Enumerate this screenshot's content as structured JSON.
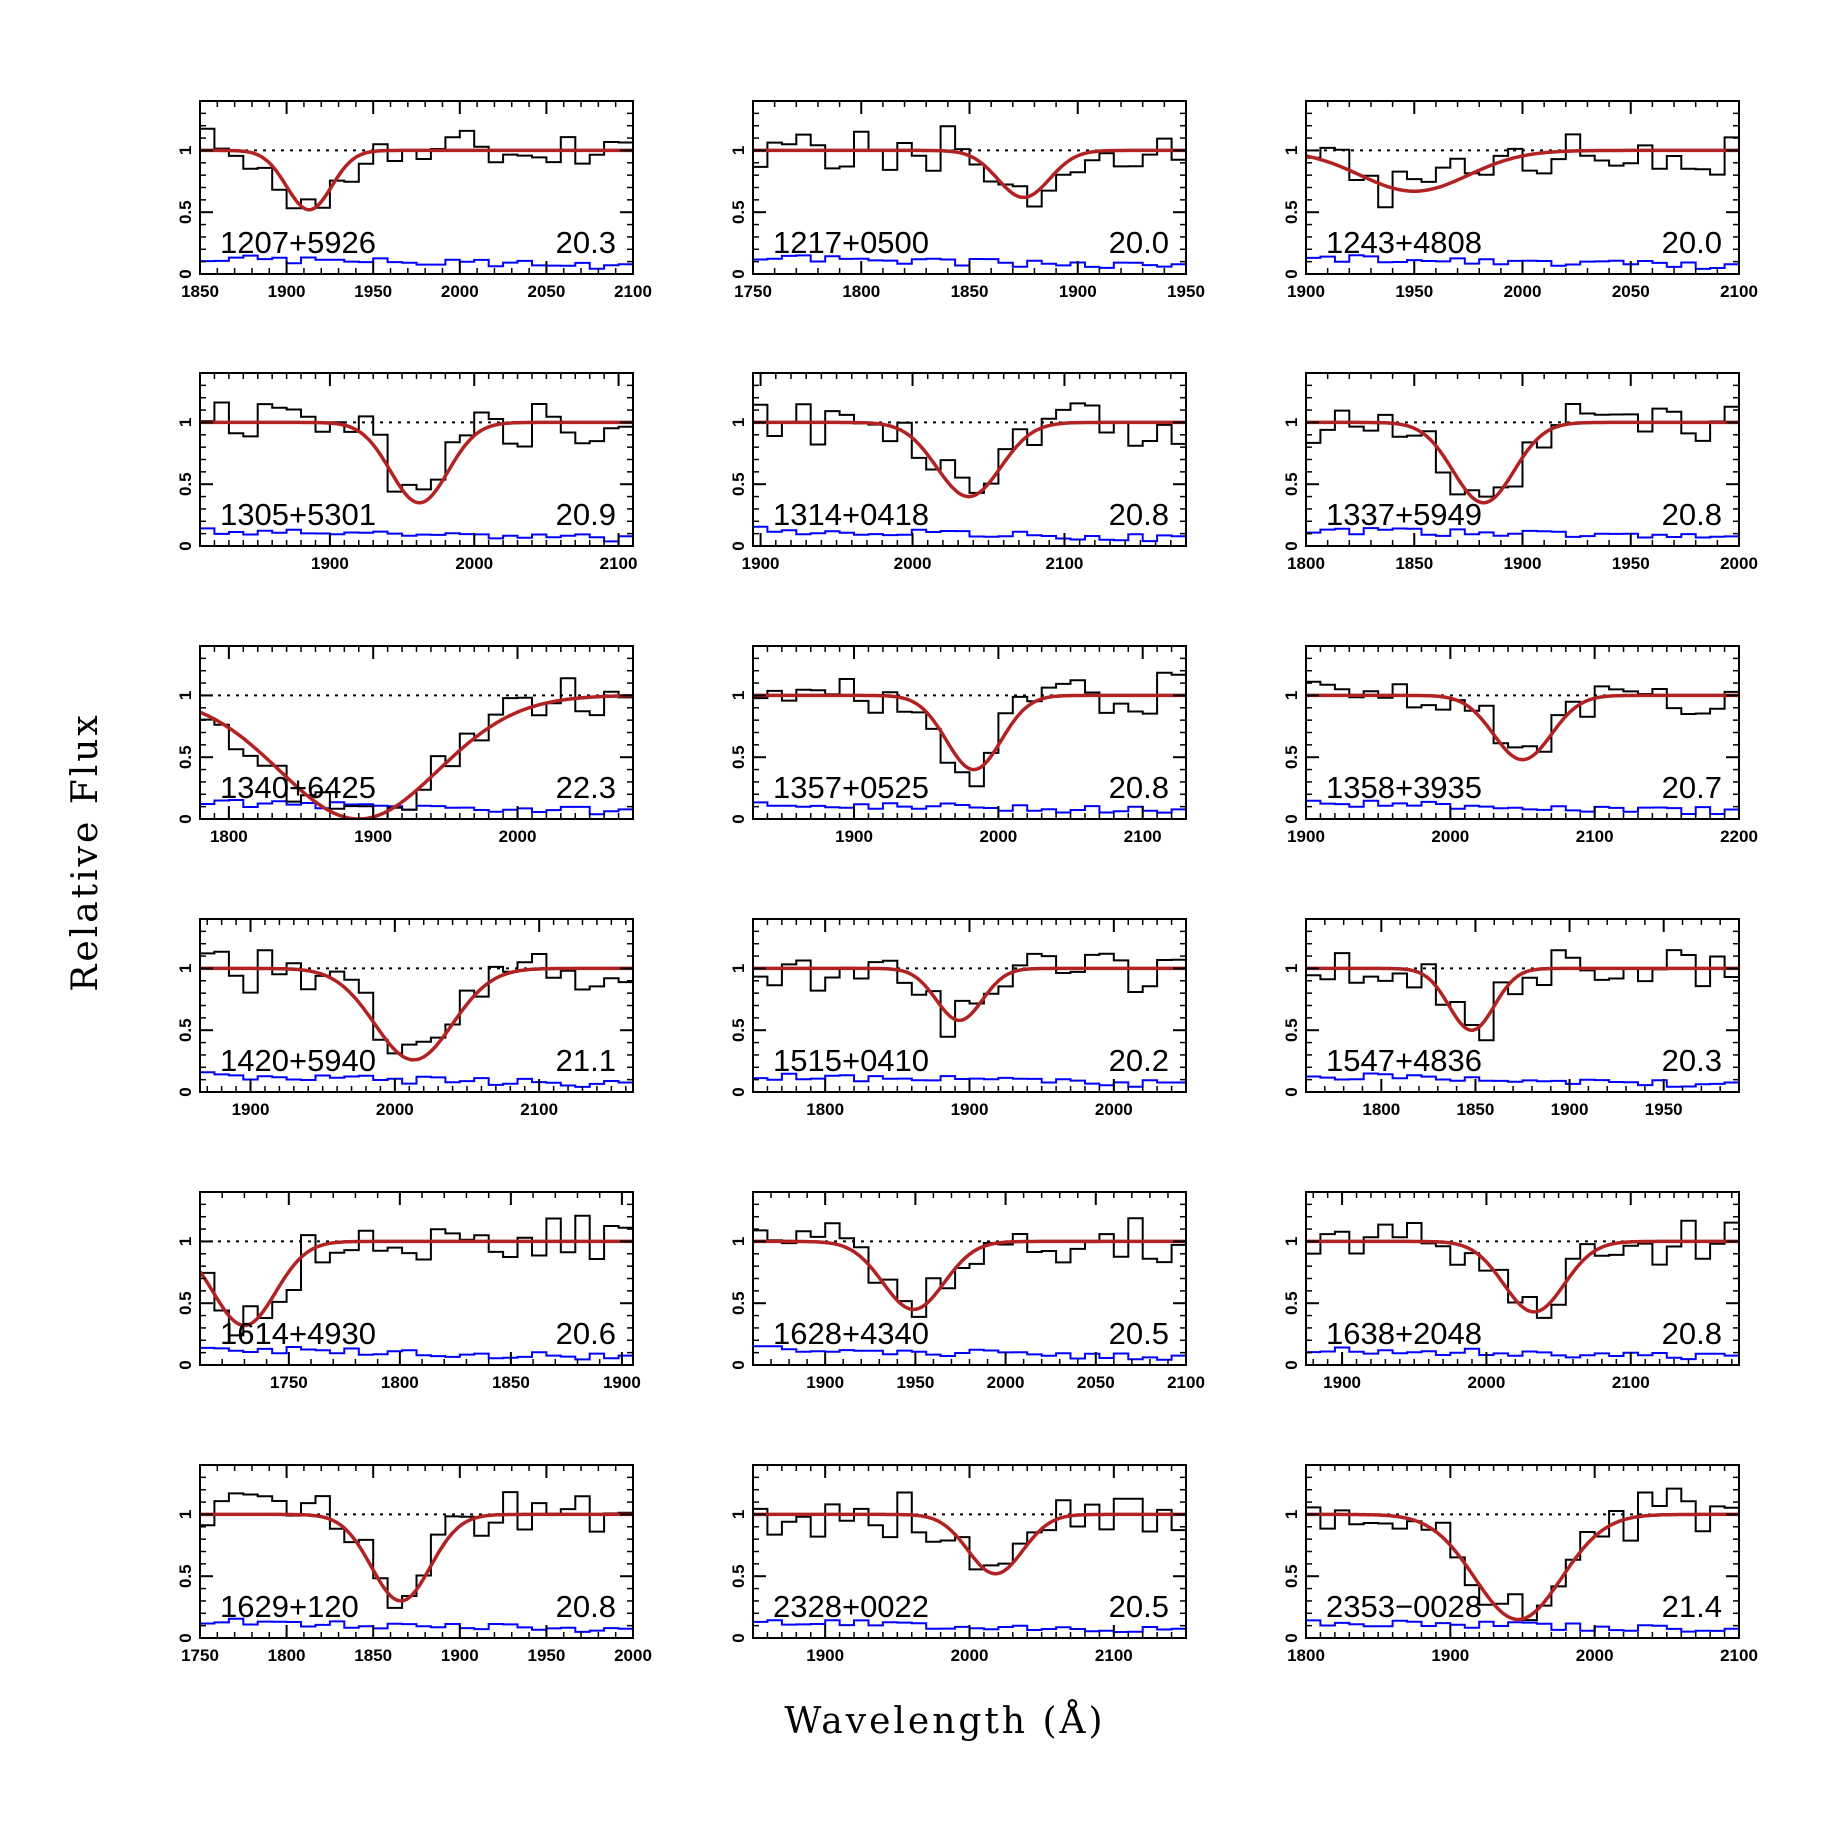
{
  "figure": {
    "xlabel": "Wavelength (Å)",
    "ylabel": "Relative Flux"
  },
  "colors": {
    "data": "#000000",
    "model": "#b22222",
    "error": "#0000ff",
    "continuum": "#000000"
  },
  "chart_data": [
    {
      "type": "line",
      "name": "1207+5926",
      "value": "20.3",
      "xlim": [
        1850,
        2100
      ],
      "xticks": [
        "1850",
        "1900",
        "1950",
        "2000",
        "2050",
        "2100"
      ],
      "yticks": [
        "0",
        "0.5",
        "1"
      ],
      "center": 1913,
      "width": 13,
      "depth": 0.48
    },
    {
      "type": "line",
      "name": "1217+0500",
      "value": "20.0",
      "xlim": [
        1750,
        1950
      ],
      "xticks": [
        "1750",
        "1800",
        "1850",
        "1900",
        "1950"
      ],
      "yticks": [
        "0",
        "0.5",
        "1"
      ],
      "center": 1875,
      "width": 12,
      "depth": 0.38
    },
    {
      "type": "line",
      "name": "1243+4808",
      "value": "20.0",
      "xlim": [
        1900,
        2100
      ],
      "xticks": [
        "1900",
        "1950",
        "2000",
        "2050",
        "2100"
      ],
      "yticks": [
        "0",
        "0.5",
        "1"
      ],
      "center": 1950,
      "width": 25,
      "depth": 0.33
    },
    {
      "type": "line",
      "name": "1305+5301",
      "value": "20.9",
      "xlim": [
        1810,
        2110
      ],
      "xticks": [
        "1900",
        "2000",
        "2100"
      ],
      "yticks": [
        "0",
        "0.5",
        "1"
      ],
      "center": 1962,
      "width": 20,
      "depth": 0.65
    },
    {
      "type": "line",
      "name": "1314+0418",
      "value": "20.8",
      "xlim": [
        1895,
        2180
      ],
      "xticks": [
        "1900",
        "2000",
        "2100"
      ],
      "yticks": [
        "0",
        "0.5",
        "1"
      ],
      "center": 2037,
      "width": 21,
      "depth": 0.6
    },
    {
      "type": "line",
      "name": "1337+5949",
      "value": "20.8",
      "xlim": [
        1800,
        2000
      ],
      "xticks": [
        "1800",
        "1850",
        "1900",
        "1950",
        "2000"
      ],
      "yticks": [
        "0",
        "0.5",
        "1"
      ],
      "center": 1882,
      "width": 14,
      "depth": 0.65
    },
    {
      "type": "line",
      "name": "1340+6425",
      "value": "22.3",
      "xlim": [
        1780,
        2080
      ],
      "xticks": [
        "1800",
        "1900",
        "2000"
      ],
      "yticks": [
        "0",
        "0.5",
        "1"
      ],
      "center": 1890,
      "width": 55,
      "depth": 1.0
    },
    {
      "type": "line",
      "name": "1357+0525",
      "value": "20.8",
      "xlim": [
        1830,
        2130
      ],
      "xticks": [
        "1900",
        "2000",
        "2100"
      ],
      "yticks": [
        "0",
        "0.5",
        "1"
      ],
      "center": 1983,
      "width": 19,
      "depth": 0.6
    },
    {
      "type": "line",
      "name": "1358+3935",
      "value": "20.7",
      "xlim": [
        1900,
        2200
      ],
      "xticks": [
        "1900",
        "2000",
        "2100",
        "2200"
      ],
      "yticks": [
        "0",
        "0.5",
        "1"
      ],
      "center": 2050,
      "width": 20,
      "depth": 0.52
    },
    {
      "type": "line",
      "name": "1420+5940",
      "value": "21.1",
      "xlim": [
        1865,
        2165
      ],
      "xticks": [
        "1900",
        "2000",
        "2100"
      ],
      "yticks": [
        "0",
        "0.5",
        "1"
      ],
      "center": 2013,
      "width": 27,
      "depth": 0.74
    },
    {
      "type": "line",
      "name": "1515+0410",
      "value": "20.2",
      "xlim": [
        1750,
        2050
      ],
      "xticks": [
        "1800",
        "1900",
        "2000"
      ],
      "yticks": [
        "0",
        "0.5",
        "1"
      ],
      "center": 1893,
      "width": 16,
      "depth": 0.42
    },
    {
      "type": "line",
      "name": "1547+4836",
      "value": "20.3",
      "xlim": [
        1760,
        1990
      ],
      "xticks": [
        "1800",
        "1850",
        "1900",
        "1950"
      ],
      "yticks": [
        "0",
        "0.5",
        "1"
      ],
      "center": 1848,
      "width": 12,
      "depth": 0.5
    },
    {
      "type": "line",
      "name": "1614+4930",
      "value": "20.6",
      "xlim": [
        1710,
        1905
      ],
      "xticks": [
        "1750",
        "1800",
        "1850",
        "1900"
      ],
      "yticks": [
        "0",
        "0.5",
        "1"
      ],
      "center": 1730,
      "width": 14,
      "depth": 0.68
    },
    {
      "type": "line",
      "name": "1628+4340",
      "value": "20.5",
      "xlim": [
        1860,
        2100
      ],
      "xticks": [
        "1900",
        "1950",
        "2000",
        "2050",
        "2100"
      ],
      "yticks": [
        "0",
        "0.5",
        "1"
      ],
      "center": 1949,
      "width": 17,
      "depth": 0.55
    },
    {
      "type": "line",
      "name": "1638+2048",
      "value": "20.8",
      "xlim": [
        1875,
        2175
      ],
      "xticks": [
        "1900",
        "2000",
        "2100"
      ],
      "yticks": [
        "0",
        "0.5",
        "1"
      ],
      "center": 2033,
      "width": 21,
      "depth": 0.57
    },
    {
      "type": "line",
      "name": "1629+120",
      "value": "20.8",
      "xlim": [
        1750,
        2000
      ],
      "xticks": [
        "1750",
        "1800",
        "1850",
        "1900",
        "1950",
        "2000"
      ],
      "yticks": [
        "0",
        "0.5",
        "1"
      ],
      "center": 1866,
      "width": 17,
      "depth": 0.7
    },
    {
      "type": "line",
      "name": "2328+0022",
      "value": "20.5",
      "xlim": [
        1850,
        2150
      ],
      "xticks": [
        "1900",
        "2000",
        "2100"
      ],
      "yticks": [
        "0",
        "0.5",
        "1"
      ],
      "center": 2018,
      "width": 19,
      "depth": 0.48
    },
    {
      "type": "line",
      "name": "2353−0028",
      "value": "21.4",
      "xlim": [
        1800,
        2100
      ],
      "xticks": [
        "1800",
        "1900",
        "2000",
        "2100"
      ],
      "yticks": [
        "0",
        "0.5",
        "1"
      ],
      "center": 1947,
      "width": 30,
      "depth": 0.85
    }
  ]
}
